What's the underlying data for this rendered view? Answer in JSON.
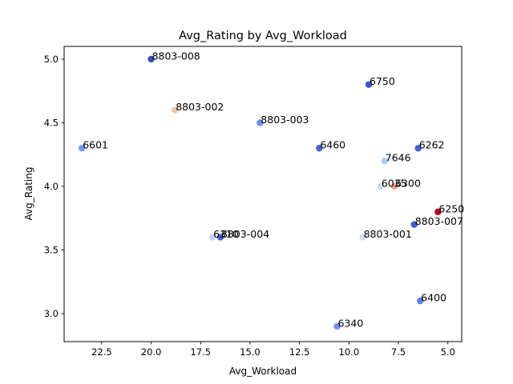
{
  "chart_data": {
    "type": "scatter",
    "title": "Avg_Rating by Avg_Workload",
    "xlabel": "Avg_Workload",
    "ylabel": "Avg_Rating",
    "x_inverted": true,
    "xlim": [
      24.4,
      4.3
    ],
    "ylim": [
      2.78,
      5.1
    ],
    "xticks": [
      22.5,
      20.0,
      17.5,
      15.0,
      12.5,
      10.0,
      7.5,
      5.0
    ],
    "xtick_labels": [
      "22.5",
      "20.0",
      "17.5",
      "15.0",
      "12.5",
      "10.0",
      "7.5",
      "5.0"
    ],
    "yticks": [
      3.0,
      3.5,
      4.0,
      4.5,
      5.0
    ],
    "ytick_labels": [
      "3.0",
      "3.5",
      "4.0",
      "4.5",
      "5.0"
    ],
    "grid": false,
    "colormap": "coolwarm",
    "points": [
      {
        "label": "8803-008",
        "x": 20.0,
        "y": 5.0,
        "color": "#3b4cc0"
      },
      {
        "label": "6750",
        "x": 9.0,
        "y": 4.8,
        "color": "#4055c8"
      },
      {
        "label": "8803-002",
        "x": 18.8,
        "y": 4.6,
        "color": "#ecc4ad"
      },
      {
        "label": "8803-003",
        "x": 14.5,
        "y": 4.5,
        "color": "#6c8ff1"
      },
      {
        "label": "6601",
        "x": 23.5,
        "y": 4.3,
        "color": "#7396f5"
      },
      {
        "label": "6460",
        "x": 11.5,
        "y": 4.3,
        "color": "#4a63d3"
      },
      {
        "label": "6262",
        "x": 6.5,
        "y": 4.3,
        "color": "#4a63d3"
      },
      {
        "label": "7646",
        "x": 8.2,
        "y": 4.2,
        "color": "#aec9fc"
      },
      {
        "label": "6035",
        "x": 8.4,
        "y": 4.0,
        "color": "#c5d6f2"
      },
      {
        "label": "6300",
        "x": 7.7,
        "y": 4.0,
        "color": "#f59c7d"
      },
      {
        "label": "6250",
        "x": 5.5,
        "y": 3.8,
        "color": "#b40426"
      },
      {
        "label": "8803-007",
        "x": 6.7,
        "y": 3.7,
        "color": "#4358cb"
      },
      {
        "label": "6310",
        "x": 16.9,
        "y": 3.6,
        "color": "#c0d4f5"
      },
      {
        "label": "8803-004",
        "x": 16.5,
        "y": 3.6,
        "color": "#4a63d3"
      },
      {
        "label": "8803-001",
        "x": 9.3,
        "y": 3.6,
        "color": "#d1dae9"
      },
      {
        "label": "6400",
        "x": 6.4,
        "y": 3.1,
        "color": "#6282ea"
      },
      {
        "label": "6340",
        "x": 10.6,
        "y": 2.9,
        "color": "#6e90f2"
      }
    ]
  }
}
